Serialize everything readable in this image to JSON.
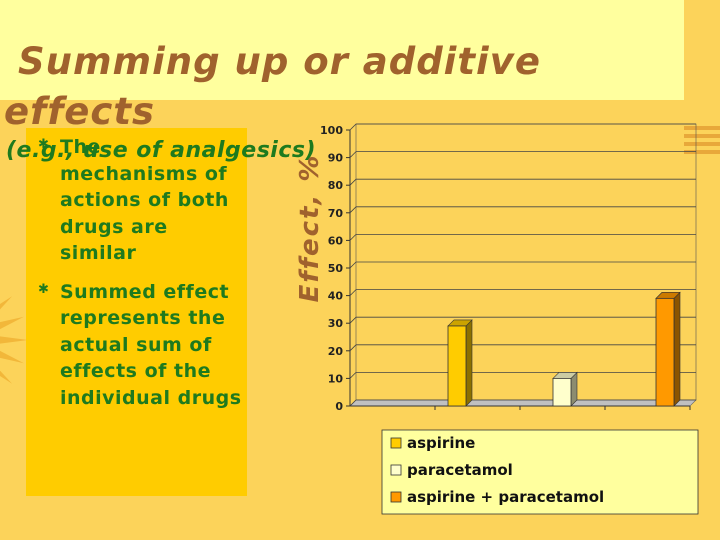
{
  "slide": {
    "title_line1": "Summing up or additive",
    "title_line2": "effects",
    "subtitle": "(e.g., use of analgesics)",
    "bullets": [
      "The mechanisms of actions of both drugs are similar",
      "Summed effect represents the actual sum of effects of the individual drugs"
    ],
    "colors": {
      "background": "#FCD35A",
      "title_band": "#FFFF9E",
      "text_box": "#FFCC00",
      "title_text": "#A0622D",
      "body_text": "#1E7A1E"
    }
  },
  "chart_data": {
    "type": "bar",
    "ylabel": "Effect, %",
    "ylim": [
      0,
      100
    ],
    "yticks": [
      "0",
      "10",
      "20",
      "30",
      "40",
      "50",
      "60",
      "70",
      "80",
      "90",
      "100"
    ],
    "grid": true,
    "legend_position": "bottom",
    "series": [
      {
        "name": "aspirine",
        "value": 29,
        "color": "#FFCC00"
      },
      {
        "name": "paracetamol",
        "value": 10,
        "color": "#FFFFCC"
      },
      {
        "name": "aspirine + paracetamol",
        "value": 39,
        "color": "#FF9900"
      }
    ]
  }
}
